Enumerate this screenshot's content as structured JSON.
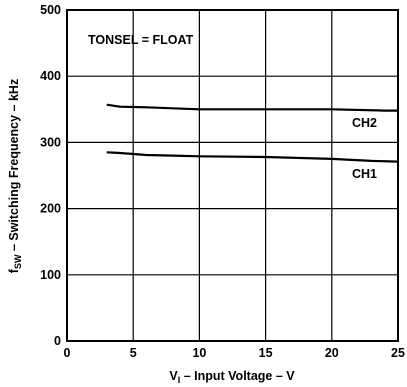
{
  "chart_data": {
    "type": "line",
    "annotation": "TONSEL = FLOAT",
    "xlabel": {
      "main": "V",
      "sub": "I",
      "rest": " – Input  Voltage – V"
    },
    "ylabel": {
      "main": "f",
      "sub": "SW",
      "rest": " – Switching Frequency – kHz"
    },
    "xlim": [
      0,
      25
    ],
    "ylim": [
      0,
      500
    ],
    "xticks": [
      0,
      5,
      10,
      15,
      20,
      25
    ],
    "yticks": [
      0,
      100,
      200,
      300,
      400,
      500
    ],
    "grid": true,
    "series": [
      {
        "name": "CH2",
        "x": [
          3,
          4,
          6,
          10,
          15,
          20,
          24,
          25
        ],
        "y": [
          357,
          354,
          353,
          350,
          350,
          350,
          348,
          348
        ]
      },
      {
        "name": "CH1",
        "x": [
          3,
          4,
          6,
          8,
          10,
          15,
          20,
          23,
          25
        ],
        "y": [
          285,
          284,
          281,
          280,
          279,
          278,
          275,
          272,
          271
        ]
      }
    ]
  }
}
